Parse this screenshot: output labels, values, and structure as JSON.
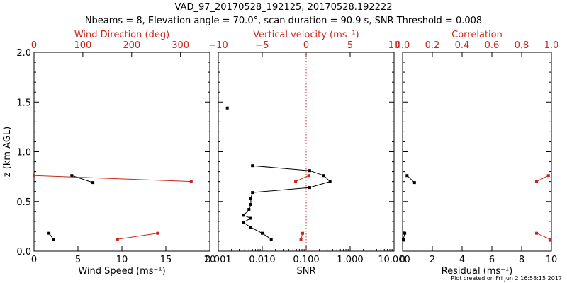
{
  "header": {
    "title_line1": "VAD_97_20170528_192125, 20170528.192222",
    "title_line2": "Nbeams = 8, Elevation angle = 70.0°, scan duration = 90.9 s, SNR Threshold = 0.008"
  },
  "footer": {
    "plot_created": "Plot created on Fri Jun  2 16:58:15 2017"
  },
  "colors": {
    "primary": "#000000",
    "secondary": "#c8281c"
  },
  "chart_data": [
    {
      "type": "line",
      "panel": "wind",
      "y_label": "z (km AGL)",
      "ylim": [
        0,
        2.0
      ],
      "y_ticks": [
        "0.0",
        "0.5",
        "1.0",
        "1.5",
        "2.0"
      ],
      "bottom_axis": {
        "label": "Wind Speed (ms⁻¹)",
        "lim": [
          0,
          20
        ],
        "ticks": [
          "0",
          "5",
          "10",
          "15",
          "20"
        ]
      },
      "top_axis": {
        "label": "Wind Direction (deg)",
        "lim": [
          0,
          360
        ],
        "ticks": [
          "0",
          "100",
          "200",
          "300"
        ]
      },
      "series": [
        {
          "axis": "bottom",
          "color": "#000000",
          "segments": [
            [
              {
                "x": 4.3,
                "y": 0.76
              },
              {
                "x": 6.7,
                "y": 0.69
              }
            ],
            [
              {
                "x": 1.7,
                "y": 0.18
              },
              {
                "x": 2.2,
                "y": 0.12
              }
            ]
          ]
        },
        {
          "axis": "top",
          "color": "#c8281c",
          "segments": [
            [
              {
                "x": 0,
                "y": 0.76
              },
              {
                "x": 322,
                "y": 0.7
              }
            ],
            [
              {
                "x": 171,
                "y": 0.12
              },
              {
                "x": 253,
                "y": 0.18
              }
            ]
          ]
        }
      ]
    },
    {
      "type": "line",
      "panel": "snr",
      "ylim": [
        0,
        2.0
      ],
      "bottom_axis": {
        "label": "SNR",
        "scale": "log",
        "lim": [
          0.001,
          10
        ],
        "ticks": [
          "0.001",
          "0.010",
          "0.100",
          "1.000",
          "10.000"
        ]
      },
      "top_axis": {
        "label": "Vertical velocity (ms⁻¹)",
        "lim": [
          -10,
          10
        ],
        "ticks": [
          "−10",
          "−5",
          "0",
          "5",
          "10"
        ],
        "reference_line": 0
      },
      "series": [
        {
          "axis": "bottom",
          "color": "#000000",
          "segments": [
            [
              {
                "x": 0.0016,
                "y": 1.44
              }
            ],
            [
              {
                "x": 0.006,
                "y": 0.86
              },
              {
                "x": 0.12,
                "y": 0.81
              },
              {
                "x": 0.25,
                "y": 0.76
              },
              {
                "x": 0.35,
                "y": 0.7
              },
              {
                "x": 0.12,
                "y": 0.64
              },
              {
                "x": 0.006,
                "y": 0.59
              },
              {
                "x": 0.0055,
                "y": 0.53
              },
              {
                "x": 0.0055,
                "y": 0.47
              },
              {
                "x": 0.005,
                "y": 0.42
              },
              {
                "x": 0.0038,
                "y": 0.36
              },
              {
                "x": 0.0055,
                "y": 0.33
              },
              {
                "x": 0.0037,
                "y": 0.29
              },
              {
                "x": 0.0055,
                "y": 0.24
              },
              {
                "x": 0.01,
                "y": 0.18
              },
              {
                "x": 0.016,
                "y": 0.12
              }
            ]
          ]
        },
        {
          "axis": "top",
          "color": "#c8281c",
          "segments": [
            [
              {
                "x": 0.3,
                "y": 0.76
              },
              {
                "x": -1.2,
                "y": 0.7
              }
            ],
            [
              {
                "x": -0.4,
                "y": 0.18
              },
              {
                "x": -0.6,
                "y": 0.12
              }
            ]
          ]
        }
      ]
    },
    {
      "type": "line",
      "panel": "residual",
      "ylim": [
        0,
        2.0
      ],
      "bottom_axis": {
        "label": "Residual (ms⁻¹)",
        "lim": [
          0,
          10
        ],
        "ticks": [
          "0",
          "2",
          "4",
          "6",
          "8",
          "10"
        ]
      },
      "top_axis": {
        "label": "Correlation",
        "lim": [
          0,
          1
        ],
        "ticks": [
          "0.0",
          "0.2",
          "0.4",
          "0.6",
          "0.8",
          "1.0"
        ]
      },
      "series": [
        {
          "axis": "bottom",
          "color": "#000000",
          "segments": [
            [
              {
                "x": 0.3,
                "y": 0.76
              },
              {
                "x": 0.8,
                "y": 0.69
              }
            ],
            [
              {
                "x": 0.15,
                "y": 0.18
              },
              {
                "x": 0.05,
                "y": 0.12
              }
            ]
          ]
        },
        {
          "axis": "top",
          "color": "#c8281c",
          "segments": [
            [
              {
                "x": 0.9,
                "y": 0.7
              },
              {
                "x": 0.98,
                "y": 0.76
              }
            ],
            [
              {
                "x": 0.9,
                "y": 0.18
              },
              {
                "x": 0.99,
                "y": 0.12
              }
            ]
          ]
        }
      ]
    }
  ]
}
